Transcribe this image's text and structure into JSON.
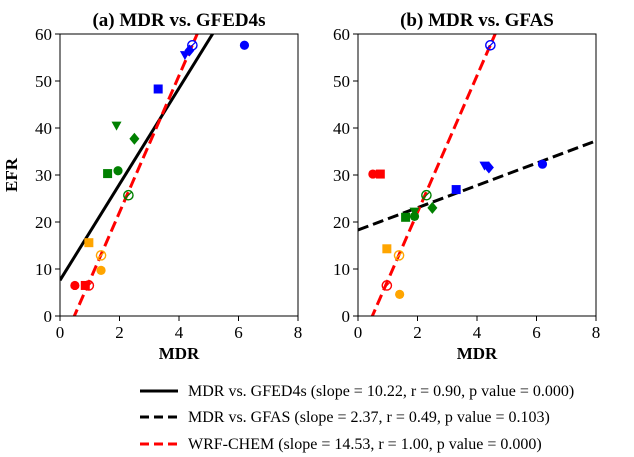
{
  "chart_data": [
    {
      "type": "scatter",
      "title": "(a) MDR vs. GFED4s",
      "xlabel": "MDR",
      "ylabel": "EFR",
      "xlim": [
        0,
        8
      ],
      "ylim": [
        0,
        60
      ],
      "xticks": [
        "0",
        "2",
        "4",
        "6",
        "8"
      ],
      "yticks": [
        "0",
        "10",
        "20",
        "30",
        "40",
        "50",
        "60"
      ],
      "points": [
        {
          "x": 0.5,
          "y": 6.5,
          "marker": "circle",
          "color": "#ff0000",
          "fill": "filled"
        },
        {
          "x": 0.85,
          "y": 6.5,
          "marker": "square",
          "color": "#ff0000",
          "fill": "filled"
        },
        {
          "x": 0.97,
          "y": 6.5,
          "marker": "circle",
          "color": "#ff0000",
          "fill": "open-slash"
        },
        {
          "x": 1.38,
          "y": 9.7,
          "marker": "circle",
          "color": "#ffa500",
          "fill": "filled"
        },
        {
          "x": 0.97,
          "y": 15.6,
          "marker": "square",
          "color": "#ffa500",
          "fill": "filled"
        },
        {
          "x": 1.38,
          "y": 12.9,
          "marker": "circle",
          "color": "#ffa500",
          "fill": "open-slash"
        },
        {
          "x": 1.6,
          "y": 30.3,
          "marker": "square",
          "color": "#008000",
          "fill": "filled"
        },
        {
          "x": 1.95,
          "y": 30.9,
          "marker": "circle",
          "color": "#008000",
          "fill": "filled"
        },
        {
          "x": 1.9,
          "y": 40.5,
          "marker": "triangle-down",
          "color": "#008000",
          "fill": "filled"
        },
        {
          "x": 2.5,
          "y": 37.7,
          "marker": "diamond",
          "color": "#008000",
          "fill": "filled"
        },
        {
          "x": 2.3,
          "y": 25.7,
          "marker": "circle",
          "color": "#008000",
          "fill": "open-slash"
        },
        {
          "x": 3.3,
          "y": 48.3,
          "marker": "square",
          "color": "#0000ff",
          "fill": "filled"
        },
        {
          "x": 4.2,
          "y": 55.5,
          "marker": "triangle-down",
          "color": "#0000ff",
          "fill": "filled"
        },
        {
          "x": 4.35,
          "y": 56.5,
          "marker": "diamond",
          "color": "#0000ff",
          "fill": "filled"
        },
        {
          "x": 4.45,
          "y": 57.6,
          "marker": "circle",
          "color": "#0000ff",
          "fill": "open-slash"
        },
        {
          "x": 6.2,
          "y": 57.6,
          "marker": "circle",
          "color": "#0000ff",
          "fill": "filled"
        }
      ],
      "lines": [
        {
          "slope": 10.22,
          "intercept": 7.6,
          "color": "#000000",
          "style": "solid"
        },
        {
          "slope": 14.53,
          "intercept": -7.0,
          "color": "#ff0000",
          "style": "dashed"
        }
      ]
    },
    {
      "type": "scatter",
      "title": "(b) MDR vs. GFAS",
      "xlabel": "MDR",
      "ylabel": "",
      "xlim": [
        0,
        8
      ],
      "ylim": [
        0,
        60
      ],
      "xticks": [
        "0",
        "2",
        "4",
        "6",
        "8"
      ],
      "yticks": [
        "0",
        "10",
        "20",
        "30",
        "40",
        "50",
        "60"
      ],
      "points": [
        {
          "x": 0.5,
          "y": 30.2,
          "marker": "circle",
          "color": "#ff0000",
          "fill": "filled"
        },
        {
          "x": 0.75,
          "y": 30.2,
          "marker": "square",
          "color": "#ff0000",
          "fill": "filled"
        },
        {
          "x": 0.97,
          "y": 6.5,
          "marker": "circle",
          "color": "#ff0000",
          "fill": "open-slash"
        },
        {
          "x": 0.97,
          "y": 14.3,
          "marker": "square",
          "color": "#ffa500",
          "fill": "filled"
        },
        {
          "x": 1.4,
          "y": 4.6,
          "marker": "circle",
          "color": "#ffa500",
          "fill": "filled"
        },
        {
          "x": 1.38,
          "y": 12.9,
          "marker": "circle",
          "color": "#ffa500",
          "fill": "open-slash"
        },
        {
          "x": 1.6,
          "y": 21.0,
          "marker": "square",
          "color": "#008000",
          "fill": "filled"
        },
        {
          "x": 1.9,
          "y": 21.2,
          "marker": "circle",
          "color": "#008000",
          "fill": "filled"
        },
        {
          "x": 1.9,
          "y": 22.2,
          "marker": "triangle-down",
          "color": "#008000",
          "fill": "filled"
        },
        {
          "x": 2.5,
          "y": 23.0,
          "marker": "diamond",
          "color": "#008000",
          "fill": "filled"
        },
        {
          "x": 2.3,
          "y": 25.7,
          "marker": "circle",
          "color": "#008000",
          "fill": "open-slash"
        },
        {
          "x": 3.3,
          "y": 26.9,
          "marker": "square",
          "color": "#0000ff",
          "fill": "filled"
        },
        {
          "x": 4.25,
          "y": 32.0,
          "marker": "triangle-down",
          "color": "#0000ff",
          "fill": "filled"
        },
        {
          "x": 4.4,
          "y": 31.6,
          "marker": "diamond",
          "color": "#0000ff",
          "fill": "filled"
        },
        {
          "x": 4.45,
          "y": 57.6,
          "marker": "circle",
          "color": "#0000ff",
          "fill": "open-slash"
        },
        {
          "x": 6.2,
          "y": 32.3,
          "marker": "circle",
          "color": "#0000ff",
          "fill": "filled"
        }
      ],
      "lines": [
        {
          "slope": 2.37,
          "intercept": 18.3,
          "color": "#000000",
          "style": "dashed"
        },
        {
          "slope": 14.53,
          "intercept": -7.0,
          "color": "#ff0000",
          "style": "dashed"
        }
      ]
    }
  ],
  "legend": [
    {
      "label": "MDR vs. GFED4s (slope = 10.22, r = 0.90, p value = 0.000)",
      "color": "#000000",
      "style": "solid"
    },
    {
      "label": "MDR vs. GFAS (slope = 2.37, r = 0.49, p value = 0.103)",
      "color": "#000000",
      "style": "dashed"
    },
    {
      "label": "WRF-CHEM (slope = 14.53, r = 1.00, p value = 0.000)",
      "color": "#ff0000",
      "style": "dashed"
    }
  ]
}
